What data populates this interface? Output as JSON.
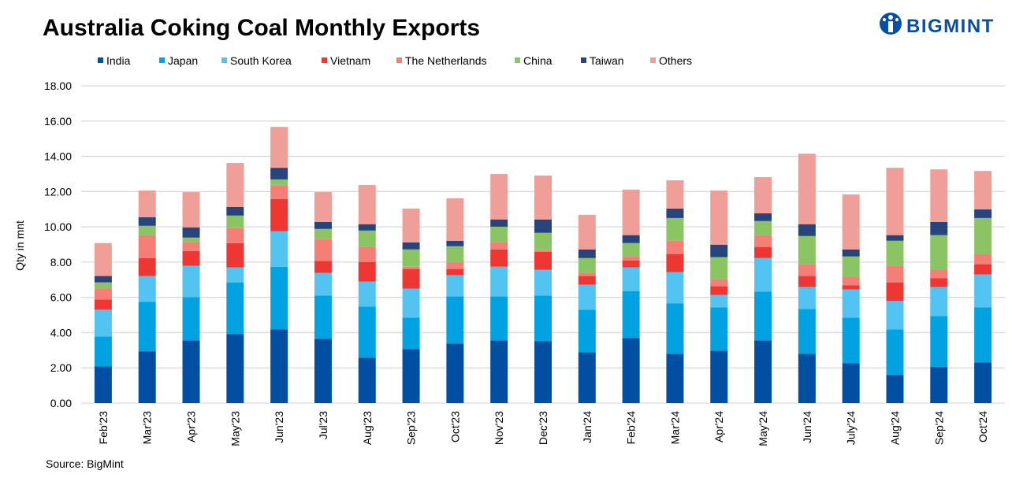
{
  "logo": {
    "text": "BIGMINT"
  },
  "chart_data": {
    "type": "bar",
    "stacked": true,
    "title": "Australia Coking Coal Monthly Exports",
    "xlabel": "",
    "ylabel": "Qty in mnt",
    "ylim": [
      0,
      18
    ],
    "yticks": [
      "0.00",
      "2.00",
      "4.00",
      "6.00",
      "8.00",
      "10.00",
      "12.00",
      "14.00",
      "16.00",
      "18.00"
    ],
    "grid": true,
    "legend": "top",
    "source": "Source: BigMint",
    "categories": [
      "Feb'23",
      "Mar'23",
      "Apr'23",
      "May'23",
      "Jun'23",
      "Jul'23",
      "Aug'23",
      "Sep'23",
      "Oct'23",
      "Nov'23",
      "Dec'23",
      "Jan'24",
      "Feb'24",
      "Mar'24",
      "Apr'24",
      "May'24",
      "Jun'24",
      "July'24",
      "Aug'24",
      "Sep'24",
      "Oct'24"
    ],
    "series": [
      {
        "name": "India",
        "color": "#004fa3",
        "values": [
          2.09,
          2.94,
          3.56,
          3.92,
          4.18,
          3.65,
          2.58,
          3.07,
          3.38,
          3.56,
          3.52,
          2.89,
          3.69,
          2.8,
          2.98,
          3.56,
          2.8,
          2.27,
          1.6,
          2.05,
          2.31
        ]
      },
      {
        "name": "Japan",
        "color": "#00a2e1",
        "values": [
          1.69,
          2.8,
          2.45,
          2.93,
          3.56,
          2.45,
          2.89,
          1.78,
          2.67,
          2.49,
          2.58,
          2.41,
          2.67,
          2.85,
          2.45,
          2.76,
          2.54,
          2.58,
          2.58,
          2.89,
          3.12
        ]
      },
      {
        "name": "South Korea",
        "color": "#53c4f1",
        "values": [
          1.52,
          1.47,
          1.78,
          0.85,
          2.01,
          1.29,
          1.43,
          1.65,
          1.21,
          1.69,
          1.47,
          1.42,
          1.34,
          1.78,
          0.71,
          1.91,
          1.25,
          1.6,
          1.61,
          1.65,
          1.87
        ]
      },
      {
        "name": "Vietnam",
        "color": "#ee3733",
        "values": [
          0.58,
          1.02,
          0.84,
          1.38,
          1.82,
          0.67,
          1.11,
          1.11,
          0.35,
          0.98,
          1.02,
          0.49,
          0.4,
          1.03,
          0.49,
          0.63,
          0.62,
          0.23,
          1.06,
          0.49,
          0.58
        ]
      },
      {
        "name": "The Netherlands",
        "color": "#f57e76",
        "values": [
          0.62,
          1.3,
          0.51,
          0.85,
          0.79,
          1.24,
          0.85,
          0.13,
          0.4,
          0.42,
          0.09,
          0.18,
          0.24,
          0.75,
          0.4,
          0.67,
          0.68,
          0.49,
          0.95,
          0.49,
          0.58
        ]
      },
      {
        "name": "China",
        "color": "#8bc563",
        "values": [
          0.35,
          0.53,
          0.25,
          0.71,
          0.33,
          0.58,
          0.93,
          0.98,
          0.89,
          0.87,
          0.98,
          0.84,
          0.74,
          1.29,
          1.25,
          0.8,
          1.59,
          1.15,
          1.41,
          1.96,
          2.04
        ]
      },
      {
        "name": "Taiwan",
        "color": "#27447c",
        "values": [
          0.36,
          0.49,
          0.58,
          0.49,
          0.66,
          0.4,
          0.36,
          0.4,
          0.31,
          0.41,
          0.76,
          0.49,
          0.45,
          0.54,
          0.71,
          0.44,
          0.67,
          0.4,
          0.32,
          0.75,
          0.49
        ]
      },
      {
        "name": "Others",
        "color": "#f09e98",
        "values": [
          1.87,
          1.51,
          2.0,
          2.49,
          2.32,
          1.69,
          2.22,
          1.92,
          2.41,
          2.58,
          2.49,
          1.96,
          2.58,
          1.6,
          3.07,
          2.05,
          4.0,
          3.12,
          3.82,
          2.98,
          2.18
        ]
      }
    ]
  }
}
